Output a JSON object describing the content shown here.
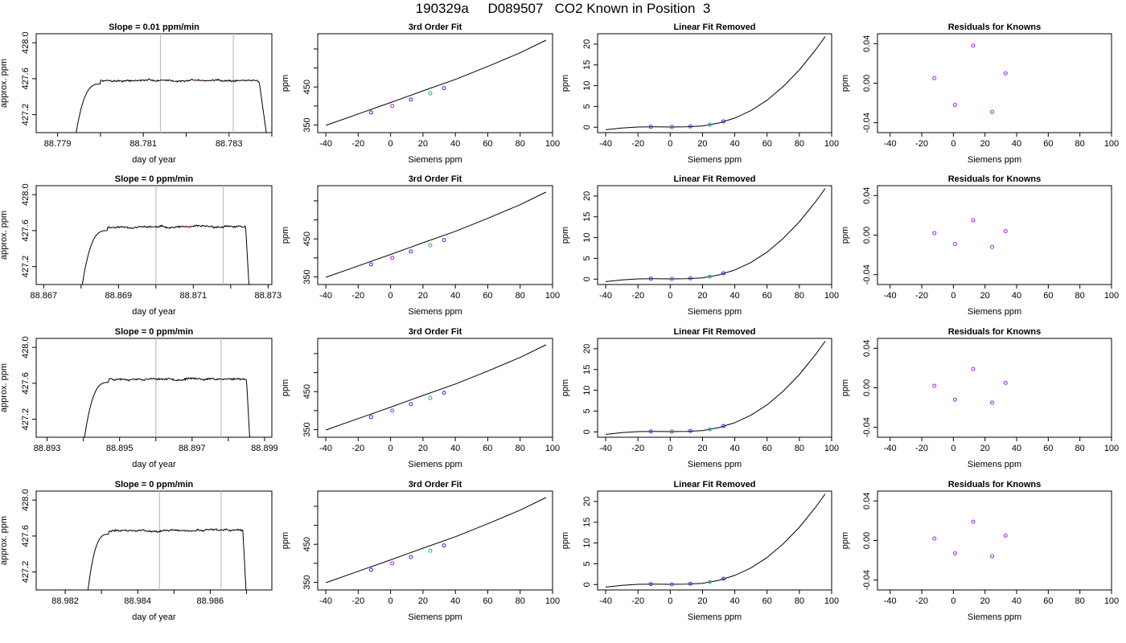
{
  "title": "190329a     D089507   CO2 Known in Position  3",
  "rows": [
    {
      "trace": {
        "title": "Slope =  0.01  ppm/min",
        "xlabel": "day of year",
        "ylabel": "approx. ppm",
        "xlim": [
          88.7785,
          88.784
        ],
        "ylim": [
          427.0,
          428.1
        ],
        "xticks": [
          "88.779",
          "88.781",
          "88.783"
        ],
        "xtick_values": [
          88.779,
          88.781,
          88.783
        ],
        "xticks_minor": [
          88.78,
          88.782,
          88.784
        ],
        "yticks": [
          "427.2",
          "427.6",
          "428.0"
        ],
        "ytick_values": [
          427.2,
          427.6,
          428.0
        ],
        "vlines": [
          88.7814,
          88.7831
        ],
        "rise_start": 88.7794,
        "plateau_start": 88.78,
        "fall_start": 88.7837,
        "fall_end": 88.7839,
        "plateau_level": 427.58,
        "noise": 0.015,
        "red_x": 88.7822,
        "seed": 7
      },
      "fit": {
        "title": "3rd Order Fit",
        "xlabel": "Siemens ppm",
        "ylabel": "ppm"
      },
      "linres": {
        "title": "Linear Fit Removed",
        "xlabel": "Siemens ppm",
        "ylabel": "ppm"
      },
      "resid": {
        "title": "Residuals for Knowns",
        "xlabel": "Siemens ppm",
        "ylabel": "ppm",
        "values": [
          0.005,
          -0.022,
          0.038,
          -0.029,
          0.01
        ]
      }
    },
    {
      "trace": {
        "title": "Slope =  0  ppm/min",
        "xlabel": "day of year",
        "ylabel": "approx. ppm",
        "xlim": [
          88.8668,
          88.8731
        ],
        "ylim": [
          427.0,
          428.1
        ],
        "xticks": [
          "88.867",
          "88.869",
          "88.871",
          "88.873"
        ],
        "xtick_values": [
          88.867,
          88.869,
          88.871,
          88.873
        ],
        "xticks_minor": [
          88.868,
          88.87,
          88.872
        ],
        "yticks": [
          "427.2",
          "427.6",
          "428.0"
        ],
        "ytick_values": [
          427.2,
          427.6,
          428.0
        ],
        "vlines": [
          88.87,
          88.8718
        ],
        "rise_start": 88.868,
        "plateau_start": 88.8687,
        "fall_start": 88.8724,
        "fall_end": 88.8725,
        "plateau_level": 427.64,
        "noise": 0.015,
        "red_x": 88.8709,
        "seed": 11
      },
      "fit": {
        "title": "3rd Order Fit",
        "xlabel": "Siemens ppm",
        "ylabel": "ppm"
      },
      "linres": {
        "title": "Linear Fit Removed",
        "xlabel": "Siemens ppm",
        "ylabel": "ppm"
      },
      "resid": {
        "title": "Residuals for Knowns",
        "xlabel": "Siemens ppm",
        "ylabel": "ppm",
        "values": [
          0.002,
          -0.009,
          0.015,
          -0.012,
          0.004
        ]
      }
    },
    {
      "trace": {
        "title": "Slope =  0  ppm/min",
        "xlabel": "day of year",
        "ylabel": "approx. ppm",
        "xlim": [
          88.8927,
          88.8992
        ],
        "ylim": [
          427.0,
          428.1
        ],
        "xticks": [
          "88.893",
          "88.895",
          "88.897",
          "88.899"
        ],
        "xtick_values": [
          88.893,
          88.895,
          88.897,
          88.899
        ],
        "xticks_minor": [
          88.894,
          88.896,
          88.898
        ],
        "yticks": [
          "427.2",
          "427.6",
          "428.0"
        ],
        "ytick_values": [
          427.2,
          427.6,
          428.0
        ],
        "vlines": [
          88.896,
          88.8978
        ],
        "rise_start": 88.894,
        "plateau_start": 88.8947,
        "fall_start": 88.8985,
        "fall_end": 88.8986,
        "plateau_level": 427.65,
        "noise": 0.015,
        "red_x": 88.8969,
        "seed": 23
      },
      "fit": {
        "title": "3rd Order Fit",
        "xlabel": "Siemens ppm",
        "ylabel": "ppm"
      },
      "linres": {
        "title": "Linear Fit Removed",
        "xlabel": "Siemens ppm",
        "ylabel": "ppm"
      },
      "resid": {
        "title": "Residuals for Knowns",
        "xlabel": "Siemens ppm",
        "ylabel": "ppm",
        "values": [
          0.002,
          -0.012,
          0.019,
          -0.015,
          0.005
        ]
      }
    },
    {
      "trace": {
        "title": "Slope =  0  ppm/min",
        "xlabel": "day of year",
        "ylabel": "approx. ppm",
        "xlim": [
          88.9812,
          88.9877
        ],
        "ylim": [
          427.0,
          428.1
        ],
        "xticks": [
          "88.982",
          "88.984",
          "88.986"
        ],
        "xtick_values": [
          88.982,
          88.984,
          88.986
        ],
        "xticks_minor": [
          88.983,
          88.985,
          88.987
        ],
        "yticks": [
          "427.2",
          "427.6",
          "428.0"
        ],
        "ytick_values": [
          427.2,
          427.6,
          428.0
        ],
        "vlines": [
          88.9846,
          88.9863
        ],
        "rise_start": 88.9826,
        "plateau_start": 88.9832,
        "fall_start": 88.9869,
        "fall_end": 88.987,
        "plateau_level": 427.66,
        "noise": 0.015,
        "red_x": 88.9855,
        "seed": 31
      },
      "fit": {
        "title": "3rd Order Fit",
        "xlabel": "Siemens ppm",
        "ylabel": "ppm"
      },
      "linres": {
        "title": "Linear Fit Removed",
        "xlabel": "Siemens ppm",
        "ylabel": "ppm"
      },
      "resid": {
        "title": "Residuals for Knowns",
        "xlabel": "Siemens ppm",
        "ylabel": "ppm",
        "values": [
          0.002,
          -0.013,
          0.019,
          -0.016,
          0.005
        ]
      }
    }
  ],
  "chart_data": {
    "type": "scatter",
    "known_x": [
      -12.0,
      1.0,
      12.5,
      24.5,
      33.0
    ],
    "fit": {
      "xlim": [
        -45,
        100
      ],
      "ylim": [
        330,
        590
      ],
      "xticks": [
        -40,
        -20,
        0,
        20,
        40,
        60,
        80,
        100
      ],
      "yticks": [
        350,
        450
      ],
      "y_at_known": [
        383,
        400,
        417,
        433,
        447
      ],
      "curve_x": [
        -40,
        -20,
        0,
        20,
        40,
        60,
        80,
        96
      ],
      "curve_y": [
        349,
        379,
        409,
        440,
        470,
        504,
        540,
        573
      ]
    },
    "linres": {
      "xlim": [
        -45,
        100
      ],
      "ylim": [
        -1.3,
        22.5
      ],
      "xticks": [
        -40,
        -20,
        0,
        20,
        40,
        60,
        80,
        100
      ],
      "yticks": [
        0,
        5,
        10,
        15,
        20
      ],
      "y_at_known": [
        0.1,
        0.05,
        0.2,
        0.6,
        1.4
      ],
      "curve_x": [
        -40,
        -30,
        -20,
        -10,
        0,
        10,
        20,
        30,
        40,
        50,
        60,
        70,
        80,
        90,
        96
      ],
      "curve_y": [
        -0.6,
        -0.2,
        0.05,
        0.1,
        0.05,
        0.1,
        0.3,
        1.0,
        2.2,
        4.0,
        6.5,
        9.8,
        13.8,
        18.6,
        21.8
      ]
    },
    "resid": {
      "xlim": [
        -48,
        100
      ],
      "ylim": [
        -0.05,
        0.05
      ],
      "xticks": [
        -40,
        -20,
        0,
        20,
        40,
        60,
        80,
        100
      ],
      "yticks": [
        -0.04,
        0.0,
        0.04
      ],
      "ytick_labels": [
        "-0.04",
        "0.00",
        "0.04"
      ]
    },
    "colors": {
      "point_blue": "#2a2ae6",
      "point_purple": "#a020f0",
      "point_cyan": "#19a8c8",
      "red_marker": "#ff3333",
      "vline": "#bebebe",
      "line": "#000000"
    }
  }
}
